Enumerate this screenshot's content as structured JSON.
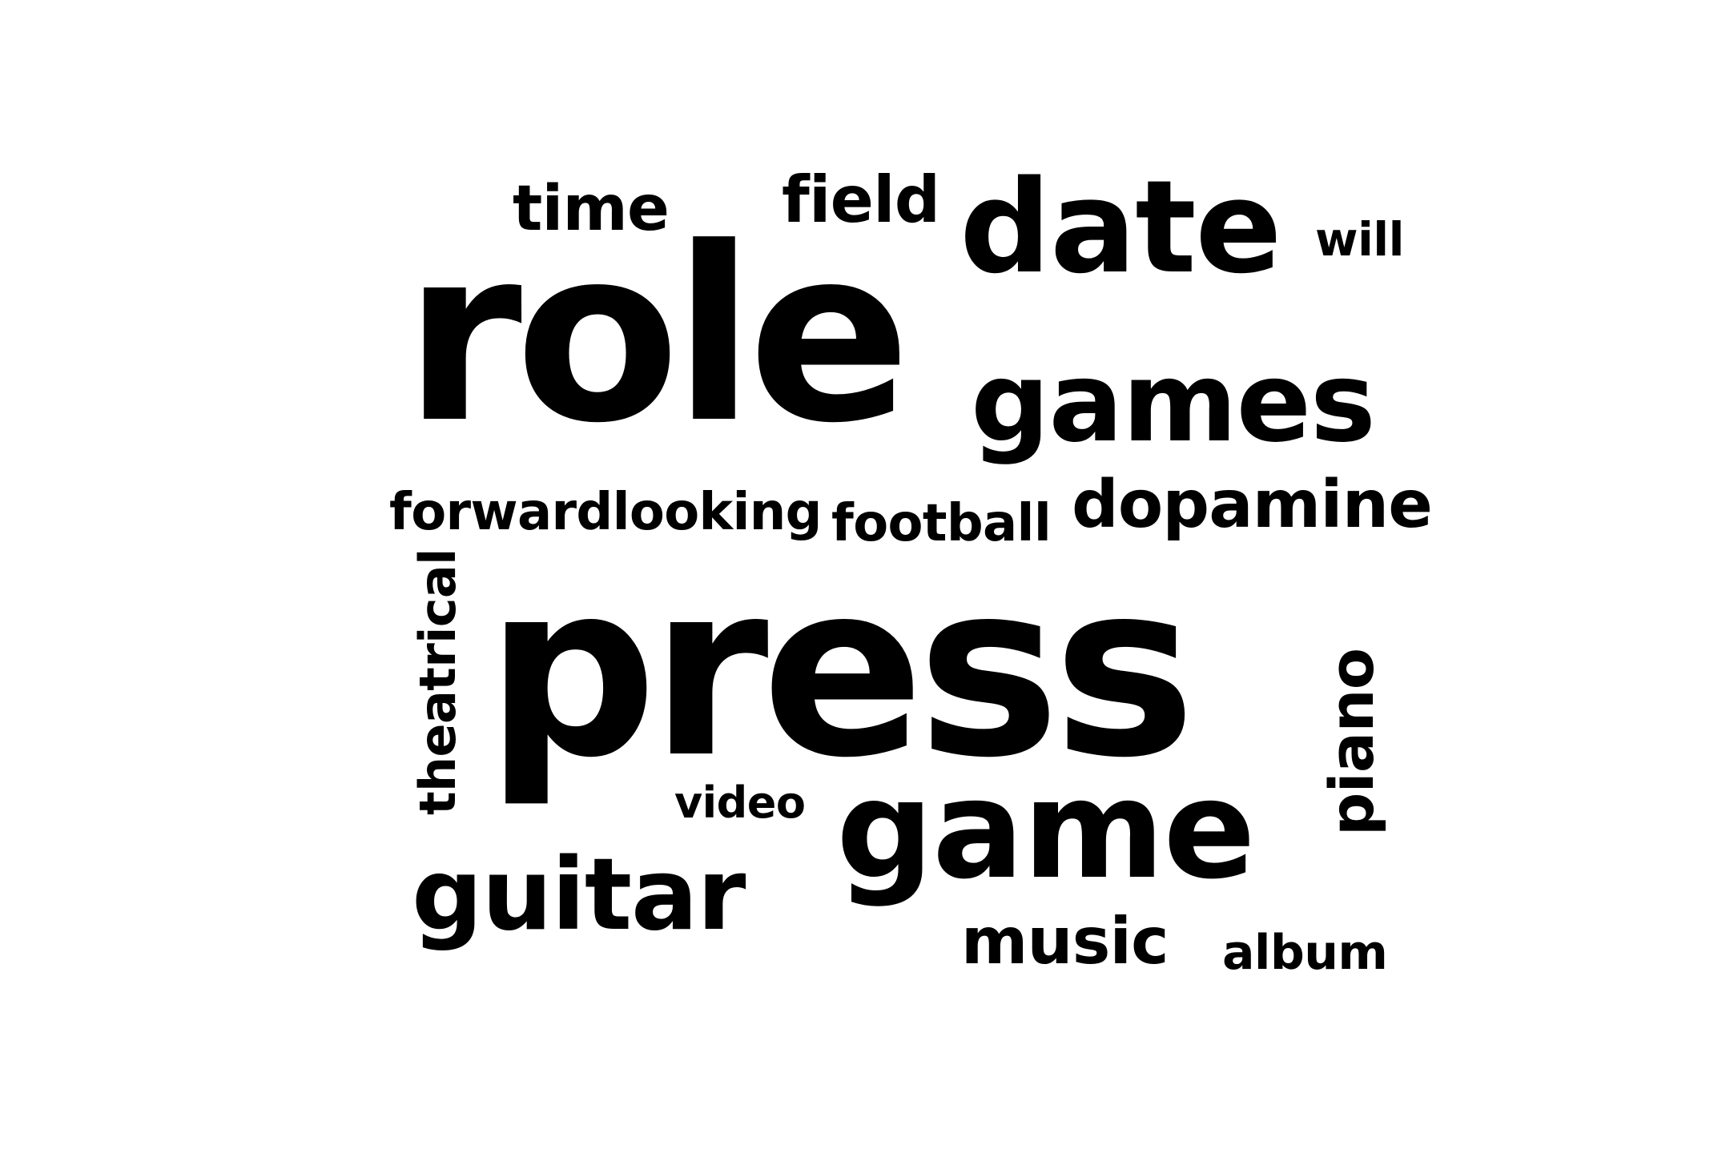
{
  "words": {
    "role": "role",
    "press": "press",
    "date": "date",
    "games": "games",
    "game": "game",
    "guitar": "guitar",
    "dopamine": "dopamine",
    "time": "time",
    "field": "field",
    "will": "will",
    "forwardlooking": "forwardlooking",
    "football": "football",
    "theatrical": "theatrical",
    "piano": "piano",
    "video": "video",
    "music": "music",
    "album": "album"
  },
  "colors": {
    "text": "#000000",
    "background": "#ffffff"
  }
}
